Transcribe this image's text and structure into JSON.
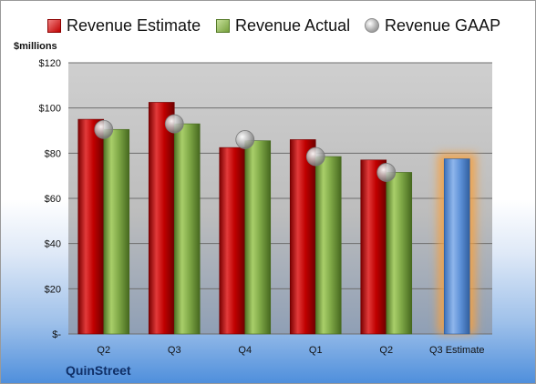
{
  "legend": {
    "estimate": "Revenue Estimate",
    "actual": "Revenue Actual",
    "gaap": "Revenue GAAP"
  },
  "unit_label": "$millions",
  "company": "QuinStreet",
  "colors": {
    "estimate": "#c00000",
    "actual": "#76a03c",
    "gaap": "#a6a6a6",
    "projection": "#5b8fd6",
    "projection_glow": "#f5a040",
    "plot_bg": "#c4c4c4"
  },
  "chart_data": {
    "type": "bar",
    "categories": [
      "Q2",
      "Q3",
      "Q4",
      "Q1",
      "Q2",
      "Q3 Estimate"
    ],
    "series": [
      {
        "name": "Revenue Estimate",
        "values": [
          95,
          102.5,
          82.5,
          86,
          77,
          null
        ]
      },
      {
        "name": "Revenue Actual",
        "values": [
          90.5,
          93,
          85.5,
          78.5,
          71.5,
          null
        ]
      },
      {
        "name": "Revenue GAAP",
        "values": [
          90.5,
          93,
          86,
          78.5,
          71.5,
          null
        ]
      },
      {
        "name": "",
        "values": [
          null,
          null,
          null,
          null,
          null,
          77.5
        ]
      }
    ],
    "yticks": [
      "$-",
      "$20",
      "$40",
      "$60",
      "$80",
      "$100",
      "$120"
    ],
    "ylim": [
      0,
      120
    ],
    "grid": true,
    "legend_position": "top"
  }
}
